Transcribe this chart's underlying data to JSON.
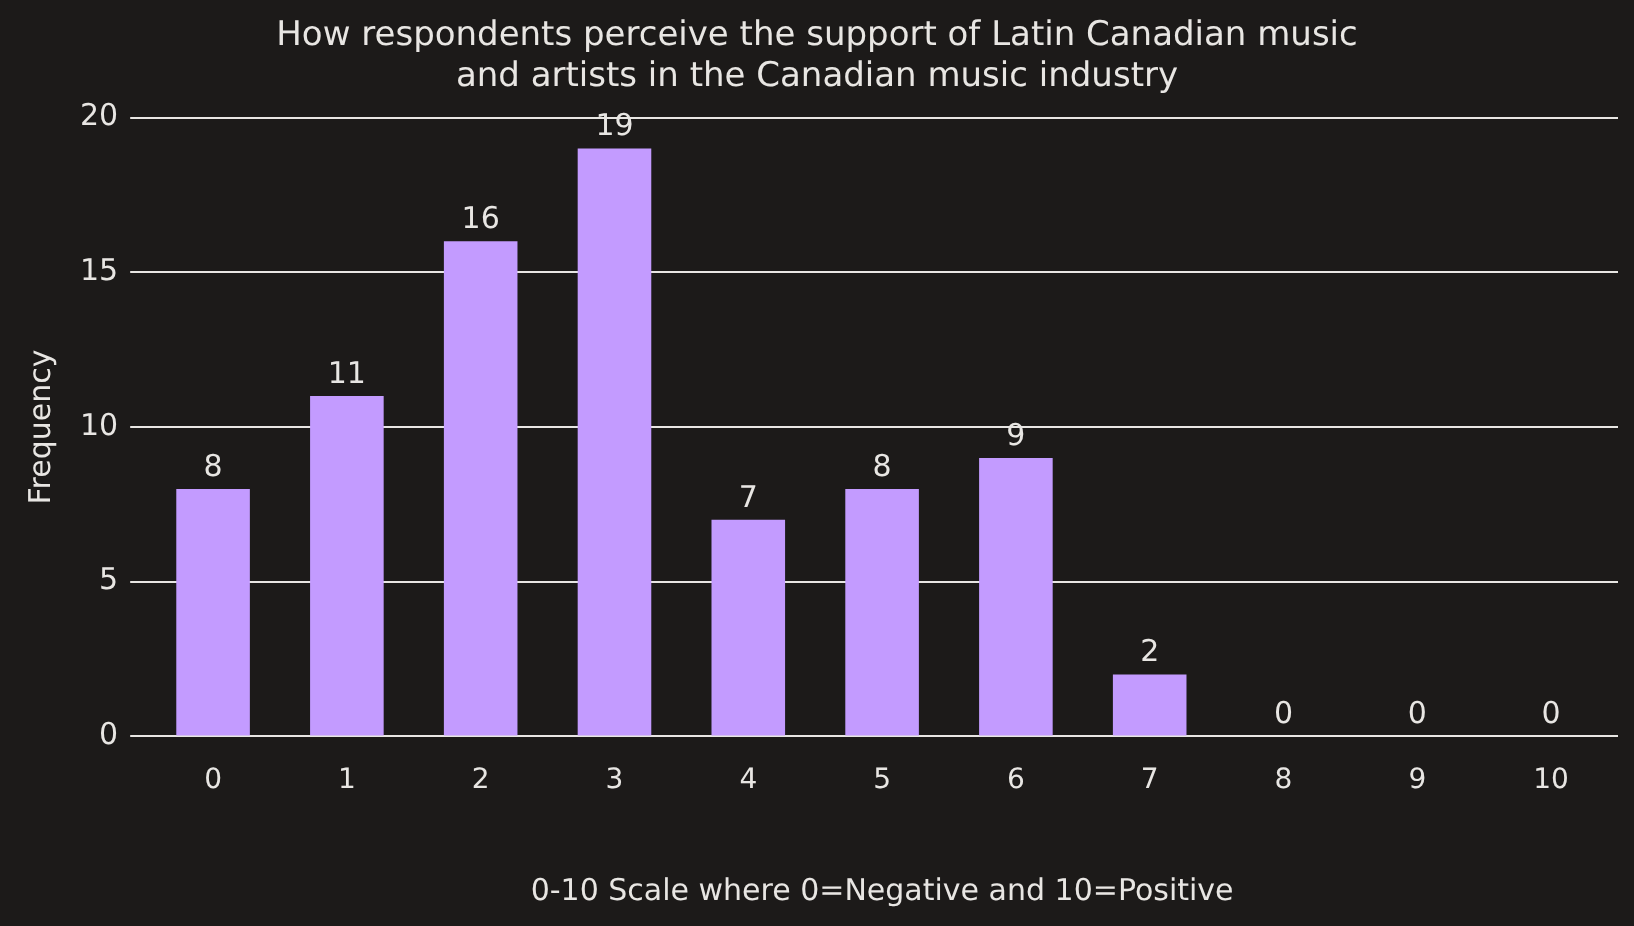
{
  "chart_data": {
    "type": "bar",
    "title": "How respondents perceive the support of Latin Canadian music\nand artists in the Canadian music industry",
    "xlabel": "0-10 Scale where 0=Negative and 10=Positive",
    "ylabel": "Frequency",
    "categories": [
      "0",
      "1",
      "2",
      "3",
      "4",
      "5",
      "6",
      "7",
      "8",
      "9",
      "10"
    ],
    "values": [
      8,
      11,
      16,
      19,
      7,
      8,
      9,
      2,
      0,
      0,
      0
    ],
    "color": "#c39bff",
    "ylim": [
      0,
      20
    ],
    "yticks": [
      0,
      5,
      10,
      15,
      20
    ],
    "grid": "y",
    "data_labels": true,
    "legend": false
  }
}
